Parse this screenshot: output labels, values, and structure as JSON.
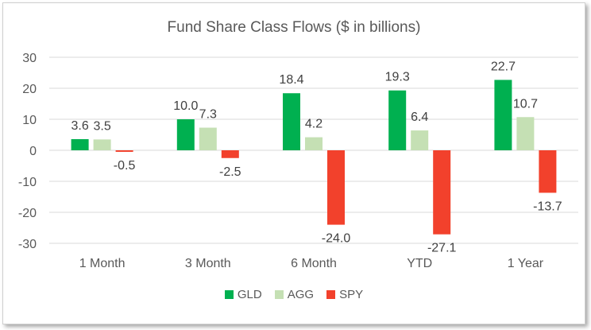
{
  "chart_data": {
    "type": "bar",
    "title": "Fund Share Class Flows ($ in billions)",
    "categories": [
      "1 Month",
      "3 Month",
      "6 Month",
      "YTD",
      "1 Year"
    ],
    "series": [
      {
        "name": "GLD",
        "color": "#00b050",
        "values": [
          3.6,
          10.0,
          18.4,
          19.3,
          22.7
        ],
        "labels": [
          "3.6",
          "10.0",
          "18.4",
          "19.3",
          "22.7"
        ]
      },
      {
        "name": "AGG",
        "color": "#c5e0b4",
        "values": [
          3.5,
          7.3,
          4.2,
          6.4,
          10.7
        ],
        "labels": [
          "3.5",
          "7.3",
          "4.2",
          "6.4",
          "10.7"
        ]
      },
      {
        "name": "SPY",
        "color": "#f2412c",
        "values": [
          -0.5,
          -2.5,
          -24.0,
          -27.1,
          -13.7
        ],
        "labels": [
          "-0.5",
          "-2.5",
          "-24.0",
          "-27.1",
          "-13.7"
        ]
      }
    ],
    "yticks": [
      "30",
      "20",
      "10",
      "0",
      "-10",
      "-20",
      "-30"
    ],
    "ylim": [
      -30,
      30
    ],
    "xlabel": "",
    "ylabel": "",
    "grid": true,
    "legend": "bottom"
  }
}
